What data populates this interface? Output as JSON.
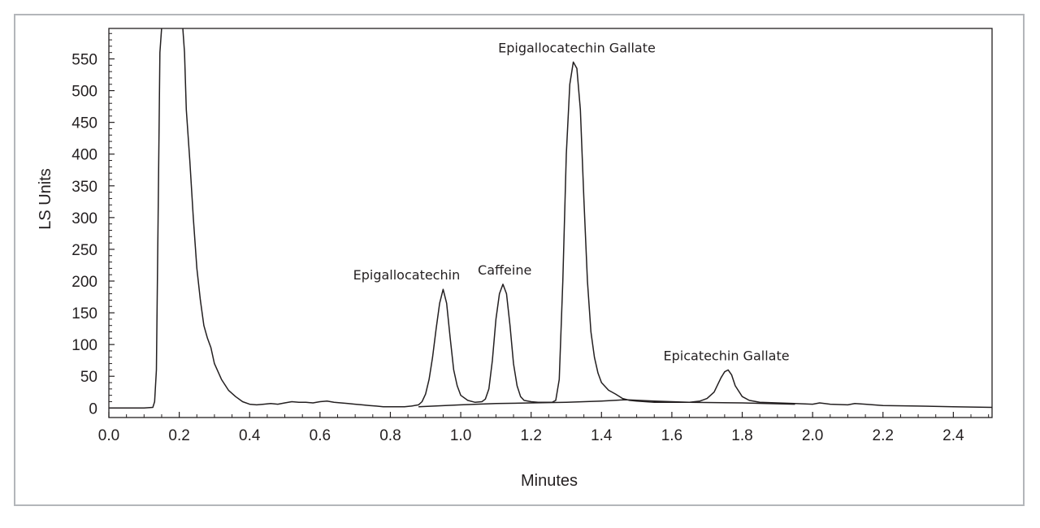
{
  "chart_data": {
    "type": "line",
    "xlabel": "Minutes",
    "ylabel": "LS Units",
    "xlim": [
      0.0,
      2.51
    ],
    "ylim": [
      -15,
      598
    ],
    "x_ticks": [
      "0.0",
      "0.2",
      "0.4",
      "0.6",
      "0.8",
      "1.0",
      "1.2",
      "1.4",
      "1.6",
      "1.8",
      "2.0",
      "2.2",
      "2.4"
    ],
    "y_ticks": [
      "0",
      "50",
      "100",
      "150",
      "200",
      "250",
      "300",
      "350",
      "400",
      "450",
      "500",
      "550"
    ],
    "grid": false,
    "series": [
      {
        "x": [
          0.0,
          0.05,
          0.1,
          0.125,
          0.13,
          0.135,
          0.14,
          0.145,
          0.15,
          0.155,
          0.21,
          0.215,
          0.22,
          0.23,
          0.24,
          0.25,
          0.26,
          0.27,
          0.28,
          0.29,
          0.3,
          0.32,
          0.34,
          0.36,
          0.38,
          0.4,
          0.42,
          0.44,
          0.46,
          0.48,
          0.5,
          0.52,
          0.54,
          0.56,
          0.58,
          0.6,
          0.62,
          0.64,
          0.66,
          0.68,
          0.7,
          0.72,
          0.74,
          0.76,
          0.78,
          0.8,
          0.82,
          0.84,
          0.86,
          0.88,
          0.89,
          0.9,
          0.91,
          0.92,
          0.93,
          0.94,
          0.95,
          0.96,
          0.97,
          0.98,
          0.99,
          1.0,
          1.02,
          1.04,
          1.06,
          1.07,
          1.08,
          1.09,
          1.1,
          1.11,
          1.12,
          1.13,
          1.14,
          1.15,
          1.16,
          1.17,
          1.18,
          1.2,
          1.22,
          1.24,
          1.26,
          1.27,
          1.28,
          1.29,
          1.3,
          1.31,
          1.32,
          1.33,
          1.34,
          1.35,
          1.36,
          1.37,
          1.38,
          1.39,
          1.4,
          1.42,
          1.44,
          1.46,
          1.48,
          1.5,
          1.55,
          1.6,
          1.65,
          1.68,
          1.7,
          1.72,
          1.74,
          1.75,
          1.76,
          1.77,
          1.78,
          1.8,
          1.82,
          1.85,
          1.9,
          1.95,
          2.0,
          2.02,
          2.05,
          2.1,
          2.12,
          2.15,
          2.2,
          2.3,
          2.4,
          2.51
        ],
        "values": [
          0,
          0,
          0,
          1,
          10,
          60,
          300,
          560,
          600,
          600,
          600,
          560,
          470,
          390,
          300,
          220,
          170,
          130,
          110,
          95,
          70,
          45,
          28,
          18,
          10,
          6,
          5,
          6,
          7,
          6,
          8,
          10,
          9,
          9,
          8,
          10,
          11,
          9,
          8,
          7,
          6,
          5,
          4,
          3,
          2,
          2,
          2,
          2,
          3,
          5,
          10,
          22,
          45,
          80,
          125,
          165,
          187,
          165,
          110,
          60,
          35,
          20,
          12,
          9,
          10,
          14,
          30,
          75,
          140,
          180,
          195,
          180,
          130,
          70,
          35,
          18,
          12,
          10,
          9,
          9,
          9,
          12,
          45,
          200,
          400,
          510,
          545,
          535,
          470,
          330,
          200,
          120,
          80,
          55,
          40,
          28,
          22,
          15,
          12,
          11,
          9,
          9,
          9,
          11,
          15,
          25,
          48,
          57,
          60,
          52,
          35,
          18,
          12,
          9,
          8,
          7,
          6,
          8,
          6,
          5,
          7,
          6,
          4,
          3,
          2,
          1
        ]
      },
      {
        "x": [
          0.88,
          1.0,
          1.1,
          1.2,
          1.3,
          1.4,
          1.47,
          1.55,
          1.65,
          1.8,
          1.95
        ],
        "values": [
          2,
          5,
          7,
          8,
          9,
          11,
          13,
          11,
          9,
          8,
          6
        ]
      }
    ],
    "annotations": [
      {
        "text": "Epigallocatechin",
        "x": 0.95,
        "y": 187
      },
      {
        "text": "Caffeine",
        "x": 1.125,
        "y": 195
      },
      {
        "text": "Epigallocatechin Gallate",
        "x": 1.33,
        "y": 545
      },
      {
        "text": "Epicatechin Gallate",
        "x": 1.755,
        "y": 60
      }
    ],
    "colors": {
      "line": "#231f20",
      "axis": "#231f20",
      "frame": "#b3b6ba"
    }
  }
}
